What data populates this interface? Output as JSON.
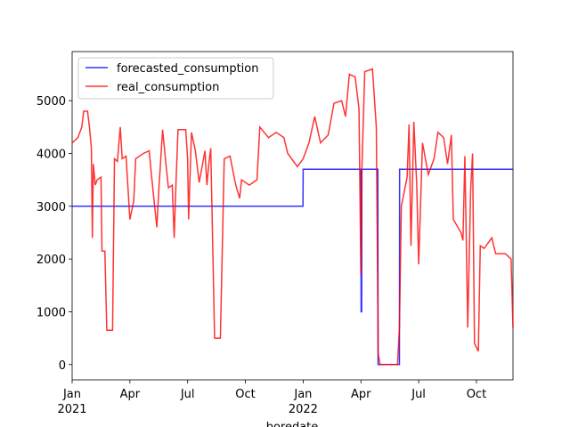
{
  "chart_data": {
    "type": "line",
    "xlabel": "boredate",
    "xlim": [
      0,
      22.9
    ],
    "xticks": [
      {
        "value": 0,
        "label": "Jan"
      },
      {
        "value": 3,
        "label": "Apr"
      },
      {
        "value": 6,
        "label": "Jul"
      },
      {
        "value": 9,
        "label": "Oct"
      },
      {
        "value": 12,
        "label": "Jan"
      },
      {
        "value": 15,
        "label": "Apr"
      },
      {
        "value": 18,
        "label": "Jul"
      },
      {
        "value": 21,
        "label": "Oct"
      }
    ],
    "xtick_years": [
      {
        "value": 0,
        "label": "2021"
      },
      {
        "value": 12,
        "label": "2022"
      }
    ],
    "ylim": [
      -290,
      5930
    ],
    "yticks": [
      0,
      1000,
      2000,
      3000,
      4000,
      5000
    ],
    "legend": "upper left",
    "series": [
      {
        "name": "forecasted_consumption",
        "color": "#0000ff",
        "x": [
          0,
          11.99,
          12,
          15,
          15.01,
          15.04,
          15.05,
          15.88,
          15.89,
          17.0,
          17.01,
          22.9
        ],
        "values": [
          3000,
          3000,
          3700,
          3700,
          1000,
          1000,
          3700,
          3700,
          0,
          0,
          3700,
          3700
        ]
      },
      {
        "name": "real_consumption",
        "color": "#ff0000",
        "x": [
          0,
          0.3,
          0.5,
          0.6,
          0.8,
          0.9,
          1.0,
          1.05,
          1.1,
          1.2,
          1.3,
          1.5,
          1.55,
          1.7,
          1.8,
          2.1,
          2.2,
          2.35,
          2.5,
          2.6,
          2.8,
          3.0,
          3.2,
          3.3,
          3.7,
          4.0,
          4.2,
          4.4,
          4.5,
          4.7,
          4.9,
          5.0,
          5.2,
          5.3,
          5.4,
          5.5,
          5.9,
          6.0,
          6.05,
          6.2,
          6.4,
          6.6,
          6.9,
          7.0,
          7.1,
          7.2,
          7.4,
          7.7,
          7.9,
          8.2,
          8.5,
          8.7,
          8.8,
          9.2,
          9.6,
          9.75,
          10.2,
          10.6,
          11.0,
          11.2,
          11.7,
          12.0,
          12.3,
          12.6,
          12.9,
          13.3,
          13.6,
          14.0,
          14.2,
          14.4,
          14.7,
          14.9,
          15.0,
          15.05,
          15.2,
          15.6,
          15.8,
          15.9,
          16.0,
          16.9,
          17.0,
          17.1,
          17.4,
          17.5,
          17.6,
          17.75,
          17.9,
          18.0,
          18.2,
          18.5,
          18.8,
          19.0,
          19.3,
          19.5,
          19.7,
          19.8,
          20.2,
          20.3,
          20.4,
          20.55,
          20.7,
          20.8,
          20.9,
          21.1,
          21.2,
          21.4,
          21.6,
          21.8,
          22.0,
          22.5,
          22.8,
          22.9
        ],
        "values": [
          4200,
          4300,
          4500,
          4800,
          4800,
          4500,
          4100,
          2400,
          3800,
          3400,
          3500,
          3550,
          2150,
          2150,
          650,
          650,
          3900,
          3850,
          4500,
          3900,
          3950,
          2750,
          3100,
          3900,
          4000,
          4050,
          3300,
          2600,
          3300,
          4450,
          3700,
          3350,
          3400,
          2400,
          3500,
          4450,
          4450,
          3900,
          2750,
          4400,
          4050,
          3450,
          4050,
          3400,
          3800,
          4100,
          500,
          500,
          3900,
          3950,
          3400,
          3150,
          3500,
          3400,
          3500,
          4500,
          4300,
          4400,
          4300,
          4000,
          3750,
          3900,
          4200,
          4700,
          4200,
          4350,
          4950,
          5000,
          4700,
          5500,
          5450,
          4850,
          1700,
          3700,
          5550,
          5600,
          4500,
          200,
          0,
          0,
          700,
          3000,
          3550,
          4550,
          2250,
          4600,
          3400,
          1900,
          4200,
          3600,
          3900,
          4400,
          4300,
          3800,
          4350,
          2750,
          2500,
          2350,
          3950,
          700,
          3300,
          4000,
          400,
          250,
          2250,
          2200,
          2300,
          2400,
          2100,
          2100,
          2000,
          700
        ]
      }
    ]
  }
}
